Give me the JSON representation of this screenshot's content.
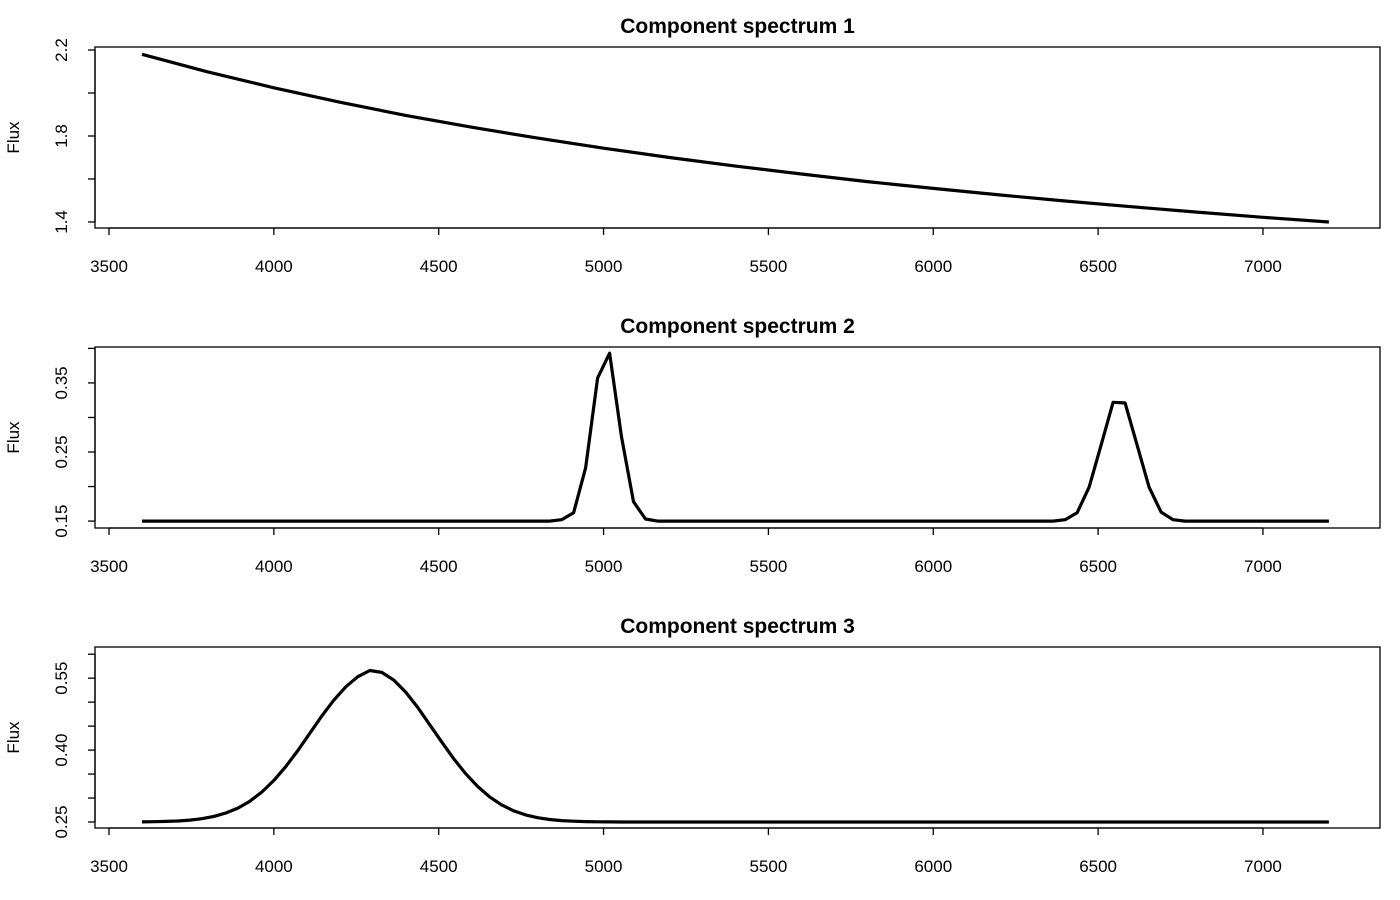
{
  "chart_data": [
    {
      "type": "line",
      "title": "Component spectrum 1",
      "xlabel": "",
      "ylabel": "Flux",
      "xlim": [
        3457.5,
        7355
      ],
      "ylim": [
        1.372,
        2.214
      ],
      "xticks": [
        3500,
        4000,
        4500,
        5000,
        5500,
        6000,
        6500,
        7000
      ],
      "yticks": [
        1.4,
        1.6,
        1.8,
        2.0,
        2.2
      ],
      "ytick_labels": [
        "1.4",
        "1.8",
        "2.2"
      ],
      "x": [
        3600,
        3800,
        4000,
        4200,
        4400,
        4600,
        4800,
        5000,
        5200,
        5400,
        5600,
        5800,
        6000,
        6200,
        6400,
        6600,
        6800,
        7000,
        7200
      ],
      "y": [
        2.18,
        2.098,
        2.024,
        1.957,
        1.896,
        1.841,
        1.79,
        1.743,
        1.7,
        1.66,
        1.623,
        1.588,
        1.556,
        1.526,
        1.4975,
        1.471,
        1.446,
        1.422,
        1.4
      ],
      "color": "#000000"
    },
    {
      "type": "line",
      "title": "Component spectrum 2",
      "xlabel": "",
      "ylabel": "Flux",
      "xlim": [
        3457.5,
        7355
      ],
      "ylim": [
        0.14,
        0.402
      ],
      "xticks": [
        3500,
        4000,
        4500,
        5000,
        5500,
        6000,
        6500,
        7000
      ],
      "yticks": [
        0.15,
        0.2,
        0.25,
        0.3,
        0.35,
        0.4
      ],
      "ytick_labels": [
        "0.15",
        "0.25",
        "0.35"
      ],
      "x_start": 3600,
      "x_end": 7200,
      "n_points": 100,
      "y": [
        0.15,
        0.15,
        0.15,
        0.15,
        0.15,
        0.15,
        0.15,
        0.15,
        0.15,
        0.15,
        0.15,
        0.15,
        0.15,
        0.15,
        0.15,
        0.15,
        0.15,
        0.15,
        0.15,
        0.15,
        0.15,
        0.15,
        0.15,
        0.15,
        0.15,
        0.15,
        0.15,
        0.15,
        0.15,
        0.15,
        0.15,
        0.15,
        0.15,
        0.15,
        0.15,
        0.152,
        0.162,
        0.227,
        0.357,
        0.393,
        0.272,
        0.178,
        0.153,
        0.15,
        0.15,
        0.15,
        0.15,
        0.15,
        0.15,
        0.15,
        0.15,
        0.15,
        0.15,
        0.15,
        0.15,
        0.15,
        0.15,
        0.15,
        0.15,
        0.15,
        0.15,
        0.15,
        0.15,
        0.15,
        0.15,
        0.15,
        0.15,
        0.15,
        0.15,
        0.15,
        0.15,
        0.15,
        0.15,
        0.15,
        0.15,
        0.15,
        0.15,
        0.152,
        0.162,
        0.199,
        0.26,
        0.322,
        0.321,
        0.26,
        0.199,
        0.163,
        0.152,
        0.15,
        0.15,
        0.15,
        0.15,
        0.15,
        0.15,
        0.15,
        0.15,
        0.15,
        0.15,
        0.15,
        0.15,
        0.15
      ],
      "color": "#000000"
    },
    {
      "type": "line",
      "title": "Component spectrum 3",
      "xlabel": "",
      "ylabel": "Flux",
      "xlim": [
        3457.5,
        7355
      ],
      "ylim": [
        0.2375,
        0.615
      ],
      "xticks": [
        3500,
        4000,
        4500,
        5000,
        5500,
        6000,
        6500,
        7000
      ],
      "yticks": [
        0.25,
        0.3,
        0.35,
        0.4,
        0.45,
        0.5,
        0.55,
        0.6
      ],
      "ytick_labels": [
        "0.25",
        "0.40",
        "0.55"
      ],
      "x_start": 3600,
      "x_end": 7200,
      "n_points": 100,
      "y": [
        0.2503,
        0.2506,
        0.2512,
        0.2522,
        0.254,
        0.257,
        0.2616,
        0.2687,
        0.279,
        0.2934,
        0.3126,
        0.3368,
        0.366,
        0.399,
        0.435,
        0.471,
        0.504,
        0.532,
        0.553,
        0.566,
        0.562,
        0.546,
        0.521,
        0.489,
        0.453,
        0.417,
        0.382,
        0.3508,
        0.324,
        0.3024,
        0.2857,
        0.2734,
        0.2648,
        0.259,
        0.2553,
        0.253,
        0.2516,
        0.2508,
        0.2504,
        0.2502,
        0.25,
        0.25,
        0.25,
        0.25,
        0.25,
        0.25,
        0.25,
        0.25,
        0.25,
        0.25,
        0.25,
        0.25,
        0.25,
        0.25,
        0.25,
        0.25,
        0.25,
        0.25,
        0.25,
        0.25,
        0.25,
        0.25,
        0.25,
        0.25,
        0.25,
        0.25,
        0.25,
        0.25,
        0.25,
        0.25,
        0.25,
        0.25,
        0.25,
        0.25,
        0.25,
        0.25,
        0.25,
        0.25,
        0.25,
        0.25,
        0.25,
        0.25,
        0.25,
        0.25,
        0.25,
        0.25,
        0.25,
        0.25,
        0.25,
        0.25,
        0.25,
        0.25,
        0.25,
        0.25,
        0.25,
        0.25,
        0.25,
        0.25,
        0.25,
        0.25
      ],
      "color": "#000000"
    }
  ]
}
